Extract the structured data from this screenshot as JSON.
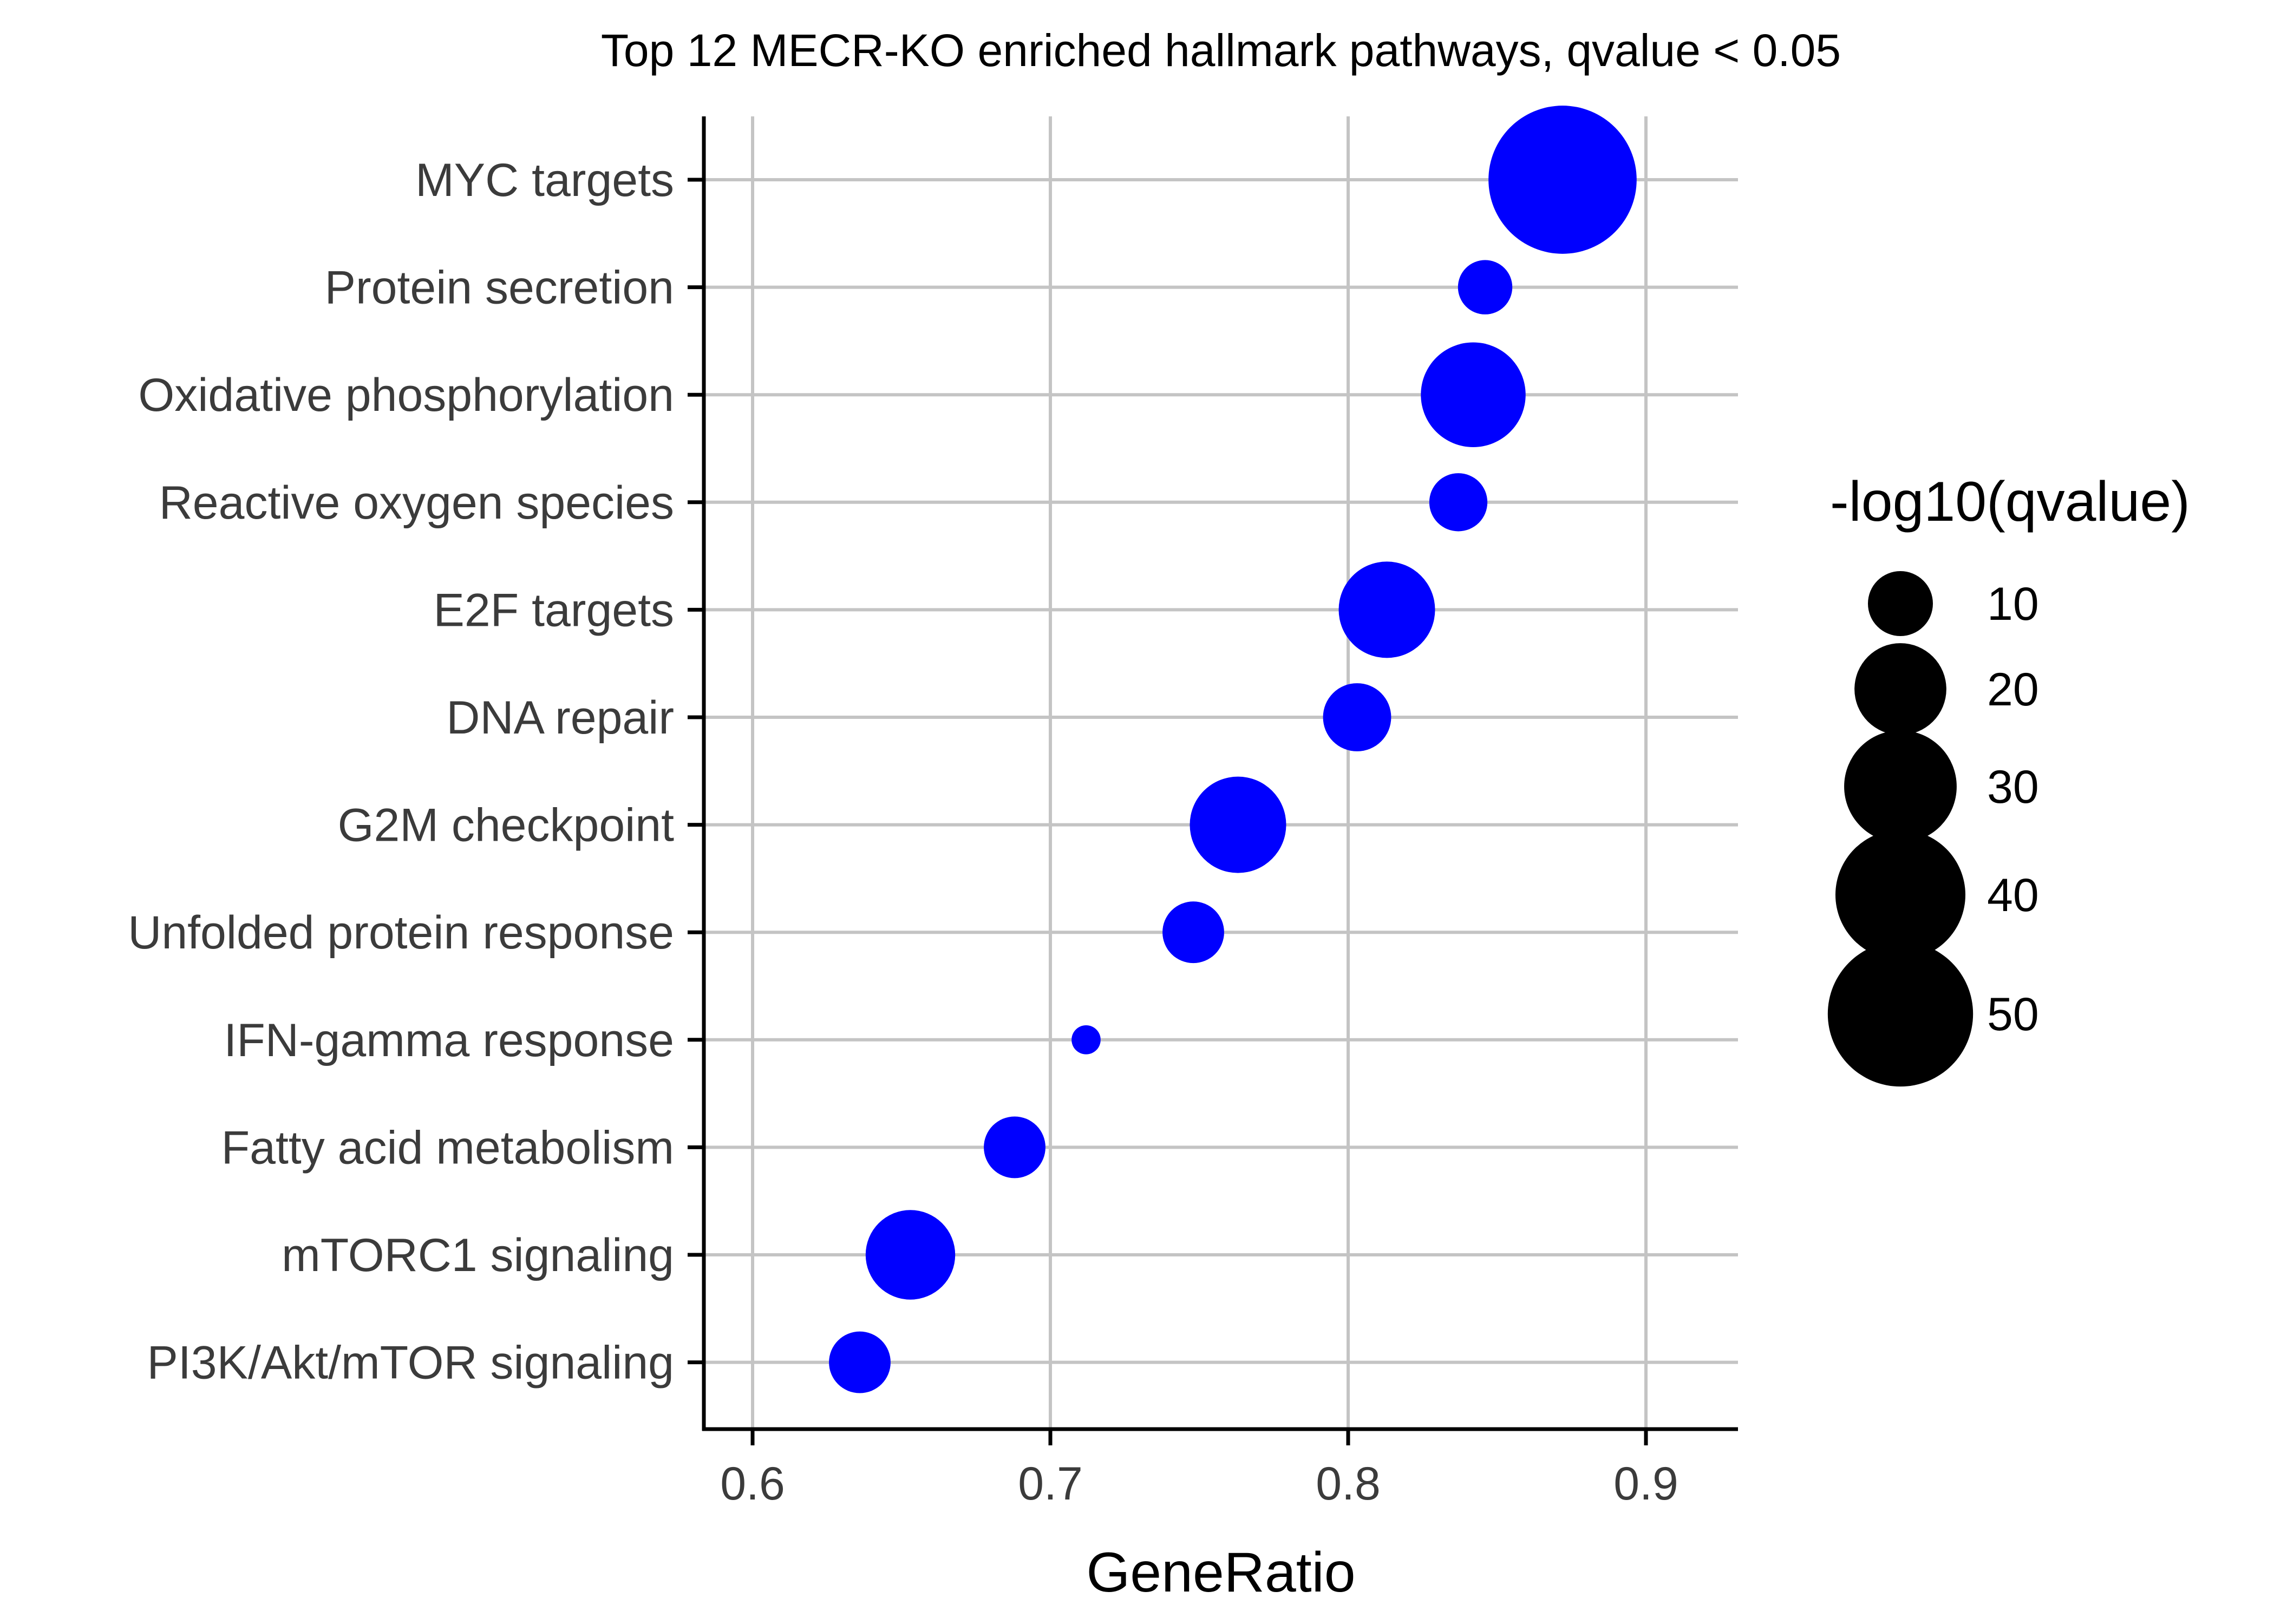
{
  "chart_data": {
    "type": "scatter",
    "title": "Top 12 MECR-KO enriched hallmark pathways, qvalue < 0.05",
    "xlabel": "GeneRatio",
    "ylabel": "",
    "xlim": [
      0.584,
      0.93
    ],
    "xticks": [
      "0.6",
      "0.7",
      "0.8",
      "0.9"
    ],
    "xtick_values": [
      0.6,
      0.7,
      0.8,
      0.9
    ],
    "grid": true,
    "point_color": "#0000ff",
    "categories": [
      "MYC targets",
      "Protein secretion",
      "Oxidative phosphorylation",
      "Reactive oxygen species",
      "E2F targets",
      "DNA repair",
      "G2M checkpoint",
      "Unfolded protein response",
      "IFN-gamma response",
      "Fatty acid metabolism",
      "mTORC1 signaling",
      "PI3K/Akt/mTOR signaling"
    ],
    "points": [
      {
        "pathway": "MYC targets",
        "x": 0.872,
        "size": 52
      },
      {
        "pathway": "Protein secretion",
        "x": 0.846,
        "size": 7
      },
      {
        "pathway": "Oxidative phosphorylation",
        "x": 0.842,
        "size": 26
      },
      {
        "pathway": "Reactive oxygen species",
        "x": 0.837,
        "size": 8
      },
      {
        "pathway": "E2F targets",
        "x": 0.813,
        "size": 22
      },
      {
        "pathway": "DNA repair",
        "x": 0.803,
        "size": 11
      },
      {
        "pathway": "G2M checkpoint",
        "x": 0.763,
        "size": 22
      },
      {
        "pathway": "Unfolded protein response",
        "x": 0.748,
        "size": 9
      },
      {
        "pathway": "IFN-gamma response",
        "x": 0.712,
        "size": 2
      },
      {
        "pathway": "Fatty acid metabolism",
        "x": 0.688,
        "size": 9
      },
      {
        "pathway": "mTORC1 signaling",
        "x": 0.653,
        "size": 19
      },
      {
        "pathway": "PI3K/Akt/mTOR signaling",
        "x": 0.636,
        "size": 9
      }
    ],
    "legend": {
      "title": "-log10(qvalue)",
      "placement": "right",
      "color": "#000000",
      "entries": [
        {
          "label": "10",
          "value": 10
        },
        {
          "label": "20",
          "value": 20
        },
        {
          "label": "30",
          "value": 30
        },
        {
          "label": "40",
          "value": 40
        },
        {
          "label": "50",
          "value": 50
        }
      ]
    }
  }
}
